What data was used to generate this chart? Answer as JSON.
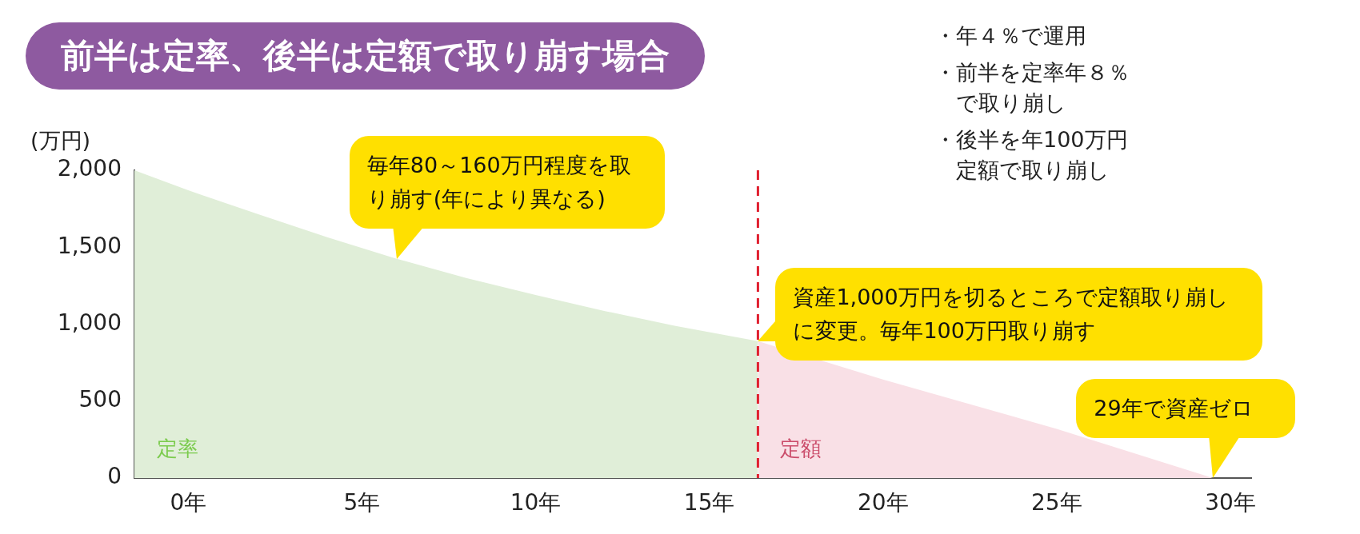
{
  "chart_data": {
    "type": "area",
    "title": "前半は定率、後半は定額で取り崩す場合",
    "ylabel": "(万円)",
    "series": [
      {
        "name": "定率",
        "color": "#e0eed8",
        "x": [
          -1.55,
          0,
          2,
          4,
          6,
          8,
          10,
          12,
          14,
          16.4
        ],
        "values": [
          2000,
          1870,
          1715,
          1565,
          1425,
          1300,
          1190,
          1085,
          990,
          890
        ]
      },
      {
        "name": "定額",
        "color": "#f9e0e6",
        "x": [
          16.4,
          20,
          25,
          29.5
        ],
        "values": [
          890,
          640,
          320,
          0
        ]
      }
    ],
    "xlim": [
      -1.55,
      30.6
    ],
    "ylim": [
      0,
      2000
    ],
    "xticks": [
      {
        "value": 0,
        "label": "0年"
      },
      {
        "value": 5,
        "label": "5年"
      },
      {
        "value": 10,
        "label": "10年"
      },
      {
        "value": 15,
        "label": "15年"
      },
      {
        "value": 20,
        "label": "20年"
      },
      {
        "value": 25,
        "label": "25年"
      },
      {
        "value": 30,
        "label": "30年"
      }
    ],
    "yticks": [
      0,
      {
        "value": 500,
        "label": "500"
      },
      {
        "value": 1000,
        "label": "1,000"
      },
      {
        "value": 1500,
        "label": "1,500"
      },
      {
        "value": 2000,
        "label": "2,000"
      }
    ],
    "ref_lines": [
      {
        "axis": "x",
        "value": 16.4,
        "color": "#e02030",
        "line_style": "dashed"
      }
    ],
    "annotations": [
      "・年４％で運用",
      "・前半を定率年８％で取り崩し",
      "・後半を年100万円定額で取り崩し",
      {
        "text": "毎年80～160万円程度を取り崩す(年により異なる)",
        "x": 6,
        "y": 1425
      },
      {
        "text": "資産1,000万円を切るところで定額取り崩しに変更。毎年100万円取り崩す",
        "x": 16.4,
        "y": 890
      },
      {
        "text": "29年で資産ゼロ",
        "x": 29.5,
        "y": 0
      }
    ],
    "grid": false,
    "legend": false
  }
}
